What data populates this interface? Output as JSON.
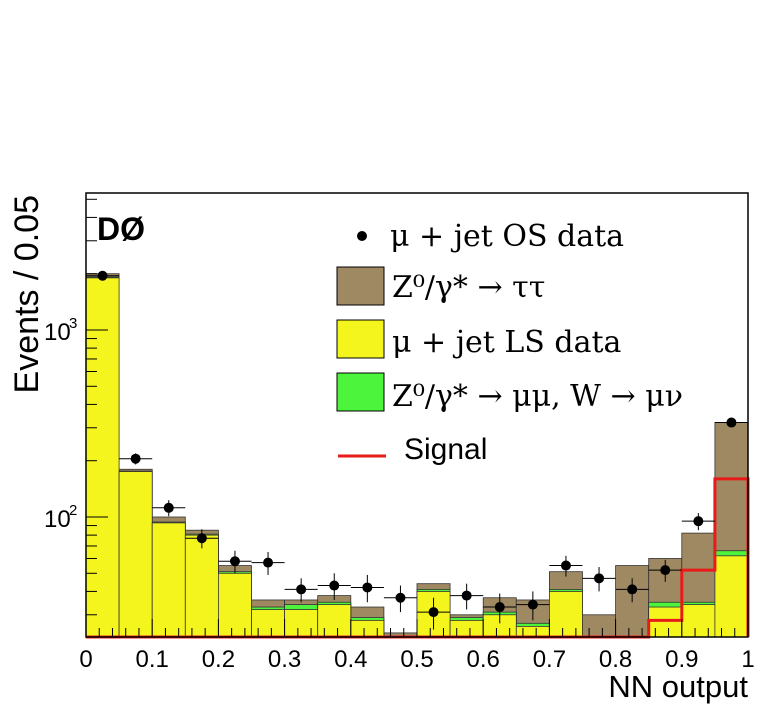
{
  "chart_data": {
    "type": "bar",
    "experiment_label": "DØ",
    "xlabel": "NN output",
    "ylabel": "Events / 0.05",
    "xlim": [
      0,
      1
    ],
    "ylim": [
      22,
      6000
    ],
    "yscale": "log",
    "x_ticks": [
      {
        "value": 0,
        "label": "0"
      },
      {
        "value": 0.1,
        "label": "0.1"
      },
      {
        "value": 0.2,
        "label": "0.2"
      },
      {
        "value": 0.3,
        "label": "0.3"
      },
      {
        "value": 0.4,
        "label": "0.4"
      },
      {
        "value": 0.5,
        "label": "0.5"
      },
      {
        "value": 0.6,
        "label": "0.6"
      },
      {
        "value": 0.7,
        "label": "0.7"
      },
      {
        "value": 0.8,
        "label": "0.8"
      },
      {
        "value": 0.9,
        "label": "0.9"
      },
      {
        "value": 1,
        "label": "1"
      }
    ],
    "y_ticks": [
      {
        "value": 1000,
        "base": "10",
        "exp": "3"
      },
      {
        "value": 100,
        "base": "10",
        "exp": "2"
      }
    ],
    "bin_edges": [
      0,
      0.05,
      0.1,
      0.15,
      0.2,
      0.25,
      0.3,
      0.35,
      0.4,
      0.45,
      0.5,
      0.55,
      0.6,
      0.65,
      0.7,
      0.75,
      0.8,
      0.85,
      0.9,
      0.95,
      1.0
    ],
    "series": [
      {
        "name": "μ + jet LS data",
        "kind": "stack",
        "color": "#f5f51e",
        "values": [
          1900,
          175,
          93,
          80,
          50,
          32,
          32,
          34,
          28,
          20,
          40,
          28,
          30,
          26,
          40,
          20,
          20,
          33,
          34,
          62
        ]
      },
      {
        "name": "Z⁰/γ* → μμ, W → μν",
        "kind": "stack",
        "color": "#4cf53c",
        "values": [
          1920,
          176,
          94,
          81,
          51,
          33,
          34,
          35,
          29,
          21,
          41,
          29,
          31,
          27,
          41,
          21,
          21,
          35,
          35,
          66
        ]
      },
      {
        "name": "Z⁰/γ* → ττ",
        "kind": "stack",
        "color": "#9e8962",
        "values": [
          2000,
          180,
          100,
          85,
          55,
          36,
          36,
          38,
          33,
          24,
          44,
          30,
          37,
          36,
          51,
          30,
          55,
          60,
          82,
          320
        ]
      },
      {
        "name": "Signal",
        "kind": "line",
        "color": "#e81b1b",
        "values": [
          22,
          22,
          22,
          22,
          22,
          22,
          22,
          22,
          22,
          22,
          22,
          22,
          22,
          22,
          22,
          22,
          22,
          28,
          52,
          160
        ]
      },
      {
        "name": "μ + jet OS data",
        "kind": "points",
        "color": "#000000",
        "values": [
          1950,
          205,
          112,
          77,
          58,
          57,
          41,
          43,
          42,
          37,
          31,
          38,
          33,
          34,
          55,
          47,
          41,
          52,
          95,
          320
        ],
        "errors": [
          44,
          14,
          11,
          9,
          8,
          8,
          6,
          7,
          7,
          6,
          6,
          6,
          6,
          6,
          7,
          7,
          6,
          7,
          10,
          18
        ]
      }
    ],
    "legend": {
      "position": "top-right",
      "entries": [
        {
          "label": "μ + jet OS data",
          "marker": "point"
        },
        {
          "label": "Z⁰/γ* → ττ",
          "marker": "box"
        },
        {
          "label": "μ + jet LS data",
          "marker": "box"
        },
        {
          "label": "Z⁰/γ* → μμ, W → μν",
          "marker": "box"
        },
        {
          "label": "Signal",
          "marker": "line"
        }
      ]
    }
  }
}
